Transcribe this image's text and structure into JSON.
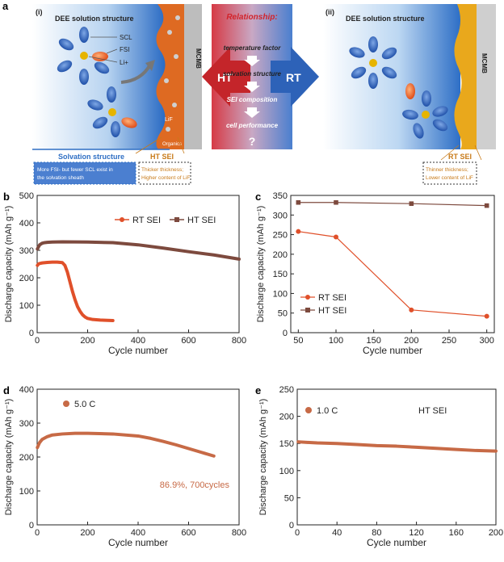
{
  "panel_a": {
    "letter": "a",
    "left": {
      "roman": "(i)",
      "title": "DEE solution structure",
      "legend": [
        "SCL",
        "FSI",
        "Li+"
      ],
      "lif_label": "LiF",
      "organics_label": "Organics",
      "electrode": "MCMB",
      "box_title": "Solvation structure",
      "box_text_1": "More FSI- but fewer SCL exist in",
      "box_text_2": "the solvation sheath",
      "sei_title": "HT SEI",
      "sei_text_1": "Thicker thickness;",
      "sei_text_2": "Higher content of LiF"
    },
    "center": {
      "title": "Relationship:",
      "steps": [
        "temperature factor",
        "solvation structure",
        "SEI composition",
        "cell performance"
      ],
      "question": "?",
      "ht": "HT",
      "rt": "RT"
    },
    "right": {
      "roman": "(ii)",
      "title": "DEE solution structure",
      "electrode": "MCMB",
      "sei_title": "RT SEI",
      "sei_text_1": "Thinner thickness;",
      "sei_text_2": "Lower content of LiF"
    }
  },
  "colors": {
    "rt": "#e0502a",
    "ht": "#7d4a3e",
    "orange_dot": "#c76a46",
    "blue_box": "#2f6fc4",
    "sei_text": "#c87a18"
  },
  "chart_data": [
    {
      "id": "b",
      "letter": "b",
      "type": "scatter",
      "xlabel": "Cycle number",
      "ylabel": "Discharge capacity (mAh g⁻¹)",
      "xlim": [
        0,
        800
      ],
      "ylim": [
        0,
        500
      ],
      "xticks": [
        0,
        200,
        400,
        600,
        800
      ],
      "yticks": [
        0,
        100,
        200,
        300,
        400,
        500
      ],
      "legend_position": "top-right",
      "series": [
        {
          "name": "RT SEI",
          "x": [
            1,
            5,
            10,
            20,
            40,
            60,
            80,
            100,
            110,
            120,
            130,
            140,
            150,
            160,
            170,
            180,
            190,
            200,
            220,
            250,
            300
          ],
          "y": [
            245,
            250,
            252,
            254,
            256,
            257,
            257,
            255,
            245,
            220,
            185,
            150,
            120,
            95,
            78,
            65,
            57,
            52,
            48,
            46,
            44
          ]
        },
        {
          "name": "HT SEI",
          "x": [
            1,
            5,
            10,
            20,
            30,
            40,
            60,
            100,
            200,
            300,
            400,
            500,
            600,
            700,
            800
          ],
          "y": [
            305,
            312,
            320,
            326,
            328,
            329,
            330,
            331,
            330,
            328,
            320,
            308,
            295,
            283,
            268
          ]
        }
      ]
    },
    {
      "id": "c",
      "letter": "c",
      "type": "line",
      "xlabel": "Cycle number",
      "ylabel": "Discharge capacity (mAh g⁻¹)",
      "xlim": [
        40,
        310
      ],
      "ylim": [
        0,
        350
      ],
      "xticks": [
        50,
        100,
        150,
        200,
        250,
        300
      ],
      "yticks": [
        0,
        50,
        100,
        150,
        200,
        250,
        300,
        350
      ],
      "legend_position": "bottom-left",
      "series": [
        {
          "name": "RT SEI",
          "x": [
            50,
            100,
            200,
            300
          ],
          "y": [
            258,
            244,
            58,
            42
          ]
        },
        {
          "name": "HT SEI",
          "x": [
            50,
            100,
            200,
            300
          ],
          "y": [
            332,
            332,
            329,
            324
          ]
        }
      ]
    },
    {
      "id": "d",
      "letter": "d",
      "type": "scatter",
      "xlabel": "Cycle  number",
      "ylabel": "Discharge capacity (mAh g⁻¹)",
      "xlim": [
        0,
        800
      ],
      "ylim": [
        0,
        400
      ],
      "xticks": [
        0,
        200,
        400,
        600,
        800
      ],
      "yticks": [
        0,
        100,
        200,
        300,
        400
      ],
      "legend_label": "5.0 C",
      "annotation": "86.9%, 700cycles",
      "series": [
        {
          "name": "5.0 C",
          "x": [
            1,
            5,
            10,
            20,
            40,
            60,
            100,
            150,
            200,
            300,
            400,
            450,
            500,
            550,
            600,
            650,
            700
          ],
          "y": [
            228,
            235,
            243,
            252,
            260,
            265,
            268,
            270,
            270,
            268,
            262,
            255,
            246,
            236,
            225,
            214,
            203
          ]
        }
      ]
    },
    {
      "id": "e",
      "letter": "e",
      "type": "scatter",
      "xlabel": "Cycle  number",
      "ylabel": "Discharge capacity (mAh g⁻¹)",
      "xlim": [
        0,
        200
      ],
      "ylim": [
        0,
        250
      ],
      "xticks": [
        0,
        40,
        80,
        120,
        160,
        200
      ],
      "yticks": [
        0,
        50,
        100,
        150,
        200,
        250
      ],
      "legend_label": "1.0 C",
      "annotation": "HT SEI",
      "series": [
        {
          "name": "1.0 C",
          "x": [
            1,
            10,
            20,
            40,
            60,
            80,
            100,
            120,
            140,
            160,
            180,
            200
          ],
          "y": [
            153,
            152,
            151,
            150,
            148,
            146,
            145,
            143,
            141,
            139,
            137,
            136
          ]
        }
      ]
    }
  ]
}
